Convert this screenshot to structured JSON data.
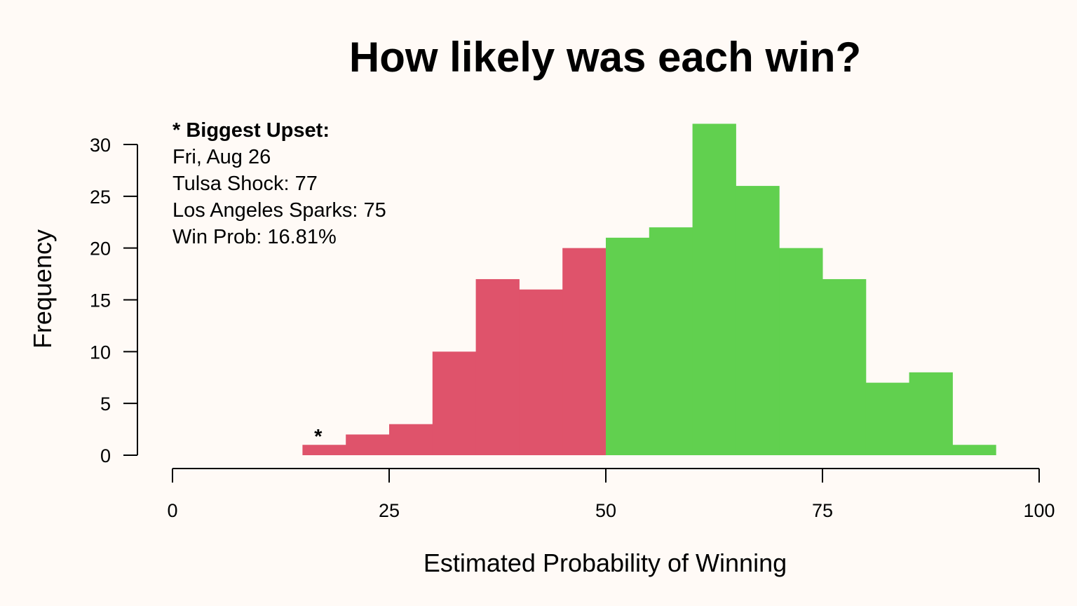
{
  "chart_data": {
    "type": "bar",
    "title": "How likely was each win?",
    "xlabel": "Estimated Probability of Winning",
    "ylabel": "Frequency",
    "xlim": [
      0,
      100
    ],
    "ylim": [
      0,
      30
    ],
    "x_ticks": [
      0,
      25,
      50,
      75,
      100
    ],
    "y_ticks": [
      0,
      5,
      10,
      15,
      20,
      25,
      30
    ],
    "bin_width": 5,
    "bins": [
      {
        "start": 15,
        "end": 20,
        "count": 1
      },
      {
        "start": 20,
        "end": 25,
        "count": 2
      },
      {
        "start": 25,
        "end": 30,
        "count": 3
      },
      {
        "start": 30,
        "end": 35,
        "count": 10
      },
      {
        "start": 35,
        "end": 40,
        "count": 17
      },
      {
        "start": 40,
        "end": 45,
        "count": 16
      },
      {
        "start": 45,
        "end": 50,
        "count": 20
      },
      {
        "start": 50,
        "end": 55,
        "count": 21
      },
      {
        "start": 55,
        "end": 60,
        "count": 22
      },
      {
        "start": 60,
        "end": 65,
        "count": 32
      },
      {
        "start": 65,
        "end": 70,
        "count": 26
      },
      {
        "start": 70,
        "end": 75,
        "count": 20
      },
      {
        "start": 75,
        "end": 80,
        "count": 17
      },
      {
        "start": 80,
        "end": 85,
        "count": 7
      },
      {
        "start": 85,
        "end": 90,
        "count": 8
      },
      {
        "start": 90,
        "end": 95,
        "count": 1
      }
    ],
    "threshold": 50,
    "colors": {
      "below_threshold": "#df536b",
      "above_threshold": "#61d04f",
      "background": "#fffaf6"
    },
    "marker": {
      "symbol": "*",
      "x": 16.81,
      "count": 1
    },
    "annotation": {
      "heading": "* Biggest Upset:",
      "lines": [
        "Fri, Aug 26",
        "Tulsa Shock: 77",
        "Los Angeles Sparks: 75",
        "Win Prob: 16.81%"
      ]
    },
    "grid": false,
    "legend": "none"
  }
}
